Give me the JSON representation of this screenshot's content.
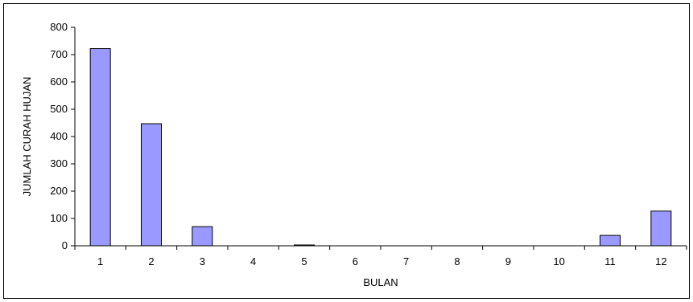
{
  "chart_data": {
    "type": "bar",
    "title": "",
    "xlabel": "BULAN",
    "ylabel": "JUMLAH CURAH HUJAN",
    "categories": [
      "1",
      "2",
      "3",
      "4",
      "5",
      "6",
      "7",
      "8",
      "9",
      "10",
      "11",
      "12"
    ],
    "values": [
      722,
      447,
      70,
      0,
      3,
      0,
      0,
      0,
      0,
      0,
      38,
      127
    ],
    "ylim": [
      0,
      800
    ],
    "yticks": [
      0,
      100,
      200,
      300,
      400,
      500,
      600,
      700,
      800
    ],
    "grid": false,
    "legend": "none",
    "bar_color": "#9999ff",
    "bar_edge_color": "#000000"
  }
}
